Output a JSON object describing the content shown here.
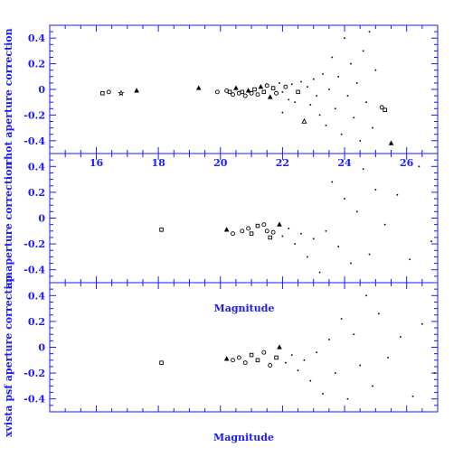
{
  "chart_data": [
    {
      "type": "scatter",
      "ylabel": "rhot aperture correction",
      "xlim": [
        14.5,
        27
      ],
      "ylim": [
        -0.5,
        0.5
      ],
      "x_ticks": [
        "16",
        "18",
        "20",
        "22",
        "24",
        "26"
      ],
      "y_ticks": [
        "0.4",
        "0.2",
        "0",
        "-0.2",
        "-0.4"
      ],
      "points": [
        {
          "x": 16.2,
          "y": -0.03,
          "m": "square"
        },
        {
          "x": 16.4,
          "y": -0.02,
          "m": "circle"
        },
        {
          "x": 16.8,
          "y": -0.03,
          "m": "star"
        },
        {
          "x": 17.3,
          "y": -0.01,
          "m": "triangle"
        },
        {
          "x": 19.3,
          "y": 0.01,
          "m": "triangle"
        },
        {
          "x": 19.9,
          "y": -0.02,
          "m": "circle"
        },
        {
          "x": 20.2,
          "y": -0.01,
          "m": "circle"
        },
        {
          "x": 20.3,
          "y": -0.02,
          "m": "square"
        },
        {
          "x": 20.4,
          "y": -0.04,
          "m": "circle"
        },
        {
          "x": 20.5,
          "y": 0.01,
          "m": "triangle"
        },
        {
          "x": 20.6,
          "y": -0.03,
          "m": "circle"
        },
        {
          "x": 20.7,
          "y": -0.02,
          "m": "square"
        },
        {
          "x": 20.8,
          "y": -0.05,
          "m": "circle"
        },
        {
          "x": 20.9,
          "y": -0.01,
          "m": "triangle"
        },
        {
          "x": 21.0,
          "y": -0.03,
          "m": "circle"
        },
        {
          "x": 21.1,
          "y": 0.0,
          "m": "square"
        },
        {
          "x": 21.2,
          "y": -0.04,
          "m": "circle"
        },
        {
          "x": 21.3,
          "y": 0.02,
          "m": "triangle"
        },
        {
          "x": 21.4,
          "y": -0.02,
          "m": "square"
        },
        {
          "x": 21.5,
          "y": 0.03,
          "m": "circle"
        },
        {
          "x": 21.6,
          "y": -0.06,
          "m": "triangle"
        },
        {
          "x": 21.7,
          "y": 0.01,
          "m": "square"
        },
        {
          "x": 21.8,
          "y": -0.03,
          "m": "circle"
        },
        {
          "x": 21.9,
          "y": 0.05,
          "m": "dot"
        },
        {
          "x": 22.0,
          "y": -0.02,
          "m": "dot"
        },
        {
          "x": 22.0,
          "y": -0.18,
          "m": "dot"
        },
        {
          "x": 22.1,
          "y": 0.02,
          "m": "circle"
        },
        {
          "x": 22.2,
          "y": -0.08,
          "m": "dot"
        },
        {
          "x": 22.3,
          "y": 0.04,
          "m": "dot"
        },
        {
          "x": 22.4,
          "y": -0.1,
          "m": "dot"
        },
        {
          "x": 22.5,
          "y": -0.02,
          "m": "square"
        },
        {
          "x": 22.6,
          "y": 0.06,
          "m": "dot"
        },
        {
          "x": 22.7,
          "y": -0.25,
          "m": "tri-open"
        },
        {
          "x": 22.8,
          "y": 0.02,
          "m": "dot"
        },
        {
          "x": 22.9,
          "y": -0.12,
          "m": "dot"
        },
        {
          "x": 23.0,
          "y": 0.08,
          "m": "dot"
        },
        {
          "x": 23.1,
          "y": -0.05,
          "m": "dot"
        },
        {
          "x": 23.2,
          "y": -0.2,
          "m": "dot"
        },
        {
          "x": 23.3,
          "y": 0.12,
          "m": "dot"
        },
        {
          "x": 23.4,
          "y": -0.28,
          "m": "dot"
        },
        {
          "x": 23.5,
          "y": 0.0,
          "m": "dot"
        },
        {
          "x": 23.6,
          "y": 0.25,
          "m": "dot"
        },
        {
          "x": 23.7,
          "y": -0.15,
          "m": "dot"
        },
        {
          "x": 23.8,
          "y": 0.1,
          "m": "dot"
        },
        {
          "x": 23.9,
          "y": -0.35,
          "m": "dot"
        },
        {
          "x": 24.0,
          "y": 0.4,
          "m": "dot"
        },
        {
          "x": 24.1,
          "y": -0.05,
          "m": "dot"
        },
        {
          "x": 24.2,
          "y": 0.2,
          "m": "dot"
        },
        {
          "x": 24.3,
          "y": -0.22,
          "m": "dot"
        },
        {
          "x": 24.4,
          "y": 0.05,
          "m": "dot"
        },
        {
          "x": 24.5,
          "y": -0.4,
          "m": "dot"
        },
        {
          "x": 24.6,
          "y": 0.3,
          "m": "dot"
        },
        {
          "x": 24.7,
          "y": -0.1,
          "m": "dot"
        },
        {
          "x": 24.8,
          "y": 0.45,
          "m": "dot"
        },
        {
          "x": 24.9,
          "y": -0.3,
          "m": "dot"
        },
        {
          "x": 25.0,
          "y": 0.15,
          "m": "dot"
        },
        {
          "x": 25.2,
          "y": -0.14,
          "m": "circle"
        },
        {
          "x": 25.3,
          "y": -0.16,
          "m": "square"
        },
        {
          "x": 25.5,
          "y": -0.42,
          "m": "triangle"
        }
      ]
    },
    {
      "type": "scatter",
      "ylabel": "ap aperture correction",
      "xlim": [
        14.5,
        27
      ],
      "ylim": [
        -0.5,
        0.5
      ],
      "x_ticks": [],
      "y_ticks": [
        "0.4",
        "0.2",
        "0",
        "-0.2",
        "-0.4"
      ],
      "points": [
        {
          "x": 18.1,
          "y": -0.09,
          "m": "square"
        },
        {
          "x": 20.2,
          "y": -0.09,
          "m": "triangle"
        },
        {
          "x": 20.4,
          "y": -0.12,
          "m": "circle"
        },
        {
          "x": 20.7,
          "y": -0.1,
          "m": "circle"
        },
        {
          "x": 20.9,
          "y": -0.08,
          "m": "circle"
        },
        {
          "x": 21.0,
          "y": -0.12,
          "m": "square"
        },
        {
          "x": 21.2,
          "y": -0.06,
          "m": "square"
        },
        {
          "x": 21.4,
          "y": -0.05,
          "m": "circle"
        },
        {
          "x": 21.5,
          "y": -0.1,
          "m": "circle"
        },
        {
          "x": 21.6,
          "y": -0.15,
          "m": "square"
        },
        {
          "x": 21.7,
          "y": -0.11,
          "m": "circle"
        },
        {
          "x": 21.9,
          "y": -0.05,
          "m": "triangle"
        },
        {
          "x": 22.0,
          "y": -0.14,
          "m": "dot"
        },
        {
          "x": 22.2,
          "y": -0.08,
          "m": "dot"
        },
        {
          "x": 22.4,
          "y": -0.2,
          "m": "dot"
        },
        {
          "x": 22.6,
          "y": -0.12,
          "m": "dot"
        },
        {
          "x": 22.8,
          "y": -0.3,
          "m": "dot"
        },
        {
          "x": 23.0,
          "y": -0.16,
          "m": "dot"
        },
        {
          "x": 23.2,
          "y": -0.42,
          "m": "dot"
        },
        {
          "x": 23.4,
          "y": -0.1,
          "m": "dot"
        },
        {
          "x": 23.6,
          "y": 0.28,
          "m": "dot"
        },
        {
          "x": 23.8,
          "y": -0.22,
          "m": "dot"
        },
        {
          "x": 24.0,
          "y": 0.15,
          "m": "dot"
        },
        {
          "x": 24.2,
          "y": -0.35,
          "m": "dot"
        },
        {
          "x": 24.4,
          "y": 0.05,
          "m": "dot"
        },
        {
          "x": 24.6,
          "y": 0.38,
          "m": "dot"
        },
        {
          "x": 24.8,
          "y": -0.28,
          "m": "dot"
        },
        {
          "x": 25.0,
          "y": 0.22,
          "m": "dot"
        },
        {
          "x": 25.3,
          "y": -0.05,
          "m": "dot"
        },
        {
          "x": 25.7,
          "y": 0.18,
          "m": "dot"
        },
        {
          "x": 26.1,
          "y": -0.32,
          "m": "dot"
        },
        {
          "x": 26.4,
          "y": 0.4,
          "m": "dot"
        },
        {
          "x": 26.8,
          "y": -0.18,
          "m": "dot"
        }
      ]
    },
    {
      "type": "scatter",
      "ylabel": "xvista psf aperture correction",
      "xlabel": "Magnitude",
      "xlim": [
        14.5,
        27
      ],
      "ylim": [
        -0.5,
        0.5
      ],
      "x_ticks": [],
      "y_ticks": [
        "0.4",
        "0.2",
        "0",
        "-0.2",
        "-0.4"
      ],
      "points": [
        {
          "x": 18.1,
          "y": -0.12,
          "m": "square"
        },
        {
          "x": 20.2,
          "y": -0.09,
          "m": "triangle"
        },
        {
          "x": 20.4,
          "y": -0.1,
          "m": "circle"
        },
        {
          "x": 20.6,
          "y": -0.08,
          "m": "circle"
        },
        {
          "x": 20.8,
          "y": -0.12,
          "m": "circle"
        },
        {
          "x": 21.0,
          "y": -0.06,
          "m": "square"
        },
        {
          "x": 21.2,
          "y": -0.1,
          "m": "square"
        },
        {
          "x": 21.4,
          "y": -0.04,
          "m": "circle"
        },
        {
          "x": 21.6,
          "y": -0.14,
          "m": "circle"
        },
        {
          "x": 21.8,
          "y": -0.08,
          "m": "square"
        },
        {
          "x": 21.9,
          "y": 0.0,
          "m": "triangle"
        },
        {
          "x": 22.1,
          "y": -0.12,
          "m": "dot"
        },
        {
          "x": 22.3,
          "y": -0.06,
          "m": "dot"
        },
        {
          "x": 22.5,
          "y": -0.18,
          "m": "dot"
        },
        {
          "x": 22.7,
          "y": -0.1,
          "m": "dot"
        },
        {
          "x": 22.9,
          "y": -0.26,
          "m": "dot"
        },
        {
          "x": 23.1,
          "y": -0.04,
          "m": "dot"
        },
        {
          "x": 23.3,
          "y": -0.36,
          "m": "dot"
        },
        {
          "x": 23.5,
          "y": 0.06,
          "m": "dot"
        },
        {
          "x": 23.7,
          "y": -0.2,
          "m": "dot"
        },
        {
          "x": 23.9,
          "y": 0.22,
          "m": "dot"
        },
        {
          "x": 24.1,
          "y": -0.4,
          "m": "dot"
        },
        {
          "x": 24.3,
          "y": 0.1,
          "m": "dot"
        },
        {
          "x": 24.5,
          "y": -0.14,
          "m": "dot"
        },
        {
          "x": 24.7,
          "y": 0.4,
          "m": "dot"
        },
        {
          "x": 24.9,
          "y": -0.3,
          "m": "dot"
        },
        {
          "x": 25.1,
          "y": 0.26,
          "m": "dot"
        },
        {
          "x": 25.4,
          "y": -0.08,
          "m": "dot"
        },
        {
          "x": 25.8,
          "y": 0.08,
          "m": "dot"
        },
        {
          "x": 26.2,
          "y": -0.38,
          "m": "dot"
        },
        {
          "x": 26.5,
          "y": 0.18,
          "m": "dot"
        },
        {
          "x": 26.9,
          "y": -0.2,
          "m": "dot"
        }
      ]
    }
  ],
  "annotations": {
    "middle_label": "Magnitude"
  },
  "colors": {
    "axis": "#1a1aff",
    "marker": "#000000"
  }
}
